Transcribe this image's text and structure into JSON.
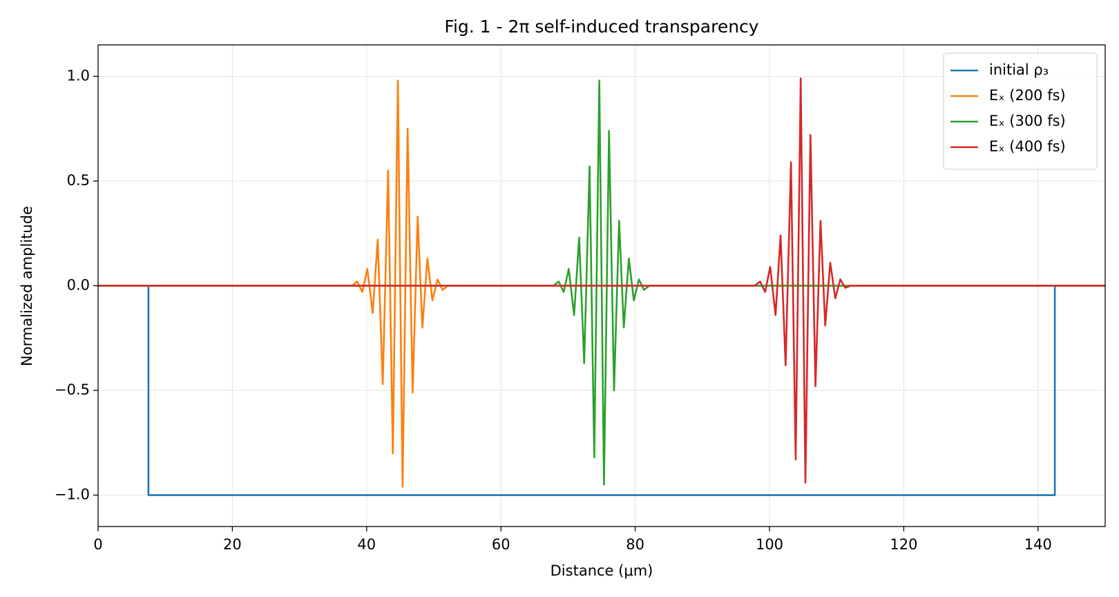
{
  "chart_data": {
    "type": "line",
    "title": "Fig. 1 - 2π self-induced transparency",
    "xlabel": "Distance (μm)",
    "ylabel": "Normalized amplitude",
    "xlim": [
      0,
      150
    ],
    "ylim": [
      -1.15,
      1.15
    ],
    "xticks": [
      0,
      20,
      40,
      60,
      80,
      100,
      120,
      140
    ],
    "yticks": [
      {
        "value": -1,
        "label": "−1.0"
      },
      {
        "value": -0.5,
        "label": "−0.5"
      },
      {
        "value": 0,
        "label": "0.0"
      },
      0.5,
      {
        "value": 1,
        "label": "1.0"
      }
    ],
    "grid": true,
    "legend": "upper right",
    "series": [
      {
        "name": "initial ρ₃",
        "color": "#1f77b4",
        "x": [
          0,
          7.5,
          7.5,
          142.5,
          142.5,
          150
        ],
        "values": [
          0,
          0,
          -1,
          -1,
          0,
          0
        ]
      },
      {
        "name": "Eₓ (200 fs)",
        "color": "#ff7f0e",
        "x": [
          0,
          37.8,
          38.6,
          39.35,
          40.1,
          40.9,
          41.65,
          42.4,
          43.2,
          43.9,
          44.65,
          45.35,
          46.1,
          46.85,
          47.6,
          48.3,
          49.05,
          49.8,
          50.55,
          51.3,
          52.1,
          150
        ],
        "values": [
          0,
          0,
          0.02,
          -0.03,
          0.08,
          -0.13,
          0.22,
          -0.47,
          0.55,
          -0.8,
          0.98,
          -0.96,
          0.75,
          -0.51,
          0.33,
          -0.2,
          0.13,
          -0.07,
          0.03,
          -0.02,
          0,
          0
        ]
      },
      {
        "name": "Eₓ (300 fs)",
        "color": "#2ca02c",
        "x": [
          0,
          67.8,
          68.6,
          69.35,
          70.1,
          70.9,
          71.65,
          72.4,
          73.2,
          73.9,
          74.65,
          75.35,
          76.1,
          76.85,
          77.6,
          78.3,
          79.05,
          79.8,
          80.55,
          81.3,
          82.1,
          150
        ],
        "values": [
          0,
          0,
          0.02,
          -0.03,
          0.08,
          -0.14,
          0.23,
          -0.37,
          0.57,
          -0.82,
          0.98,
          -0.95,
          0.74,
          -0.5,
          0.31,
          -0.2,
          0.13,
          -0.07,
          0.03,
          -0.02,
          0,
          0
        ]
      },
      {
        "name": "Eₓ (400 fs)",
        "color": "#d62728",
        "x": [
          0,
          97.8,
          98.6,
          99.35,
          100.1,
          100.9,
          101.65,
          102.4,
          103.2,
          103.9,
          104.65,
          105.35,
          106.1,
          106.85,
          107.6,
          108.3,
          109.05,
          109.8,
          110.55,
          111.3,
          112.1,
          150
        ],
        "values": [
          0,
          0,
          0.02,
          -0.03,
          0.09,
          -0.14,
          0.24,
          -0.38,
          0.59,
          -0.83,
          0.99,
          -0.94,
          0.72,
          -0.48,
          0.31,
          -0.19,
          0.11,
          -0.06,
          0.03,
          -0.01,
          0,
          0
        ]
      }
    ]
  }
}
